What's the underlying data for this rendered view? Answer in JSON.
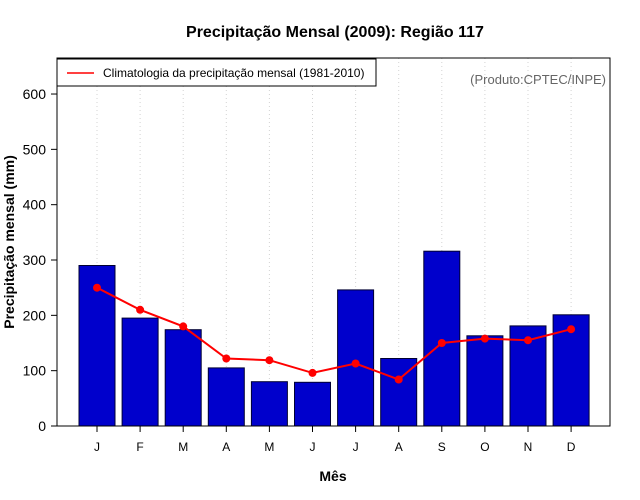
{
  "colors": {
    "bar_fill": "#0000cc",
    "bar_stroke": "#000033",
    "line": "#ff0000",
    "grid": "#d3d3d3",
    "axis": "#000000",
    "source_text": "#666666"
  },
  "source_note": "(Produto:CPTEC/INPE)",
  "chart_data": {
    "type": "bar",
    "title": "Precipitação Mensal (2009): Região 117",
    "xlabel": "Mês",
    "ylabel": "Precipitação mensal (mm)",
    "ylim": [
      0,
      660
    ],
    "yticks": [
      0,
      100,
      200,
      300,
      400,
      500,
      600
    ],
    "grid": "vertical-dotted",
    "categories": [
      "J",
      "F",
      "M",
      "A",
      "M",
      "J",
      "J",
      "A",
      "S",
      "O",
      "N",
      "D"
    ],
    "series": [
      {
        "name": "Precipitação mensal (2009)",
        "type": "bar",
        "values": [
          290,
          195,
          174,
          105,
          80,
          79,
          246,
          122,
          316,
          163,
          181,
          201
        ]
      },
      {
        "name": "Climatologia da precipitação mensal (1981-2010)",
        "type": "line",
        "values": [
          250,
          210,
          180,
          122,
          119,
          96,
          113,
          84,
          150,
          158,
          155,
          175
        ]
      }
    ],
    "legend": {
      "position": "top-left",
      "entries": [
        "Climatologia da precipitação mensal (1981-2010)"
      ]
    }
  }
}
